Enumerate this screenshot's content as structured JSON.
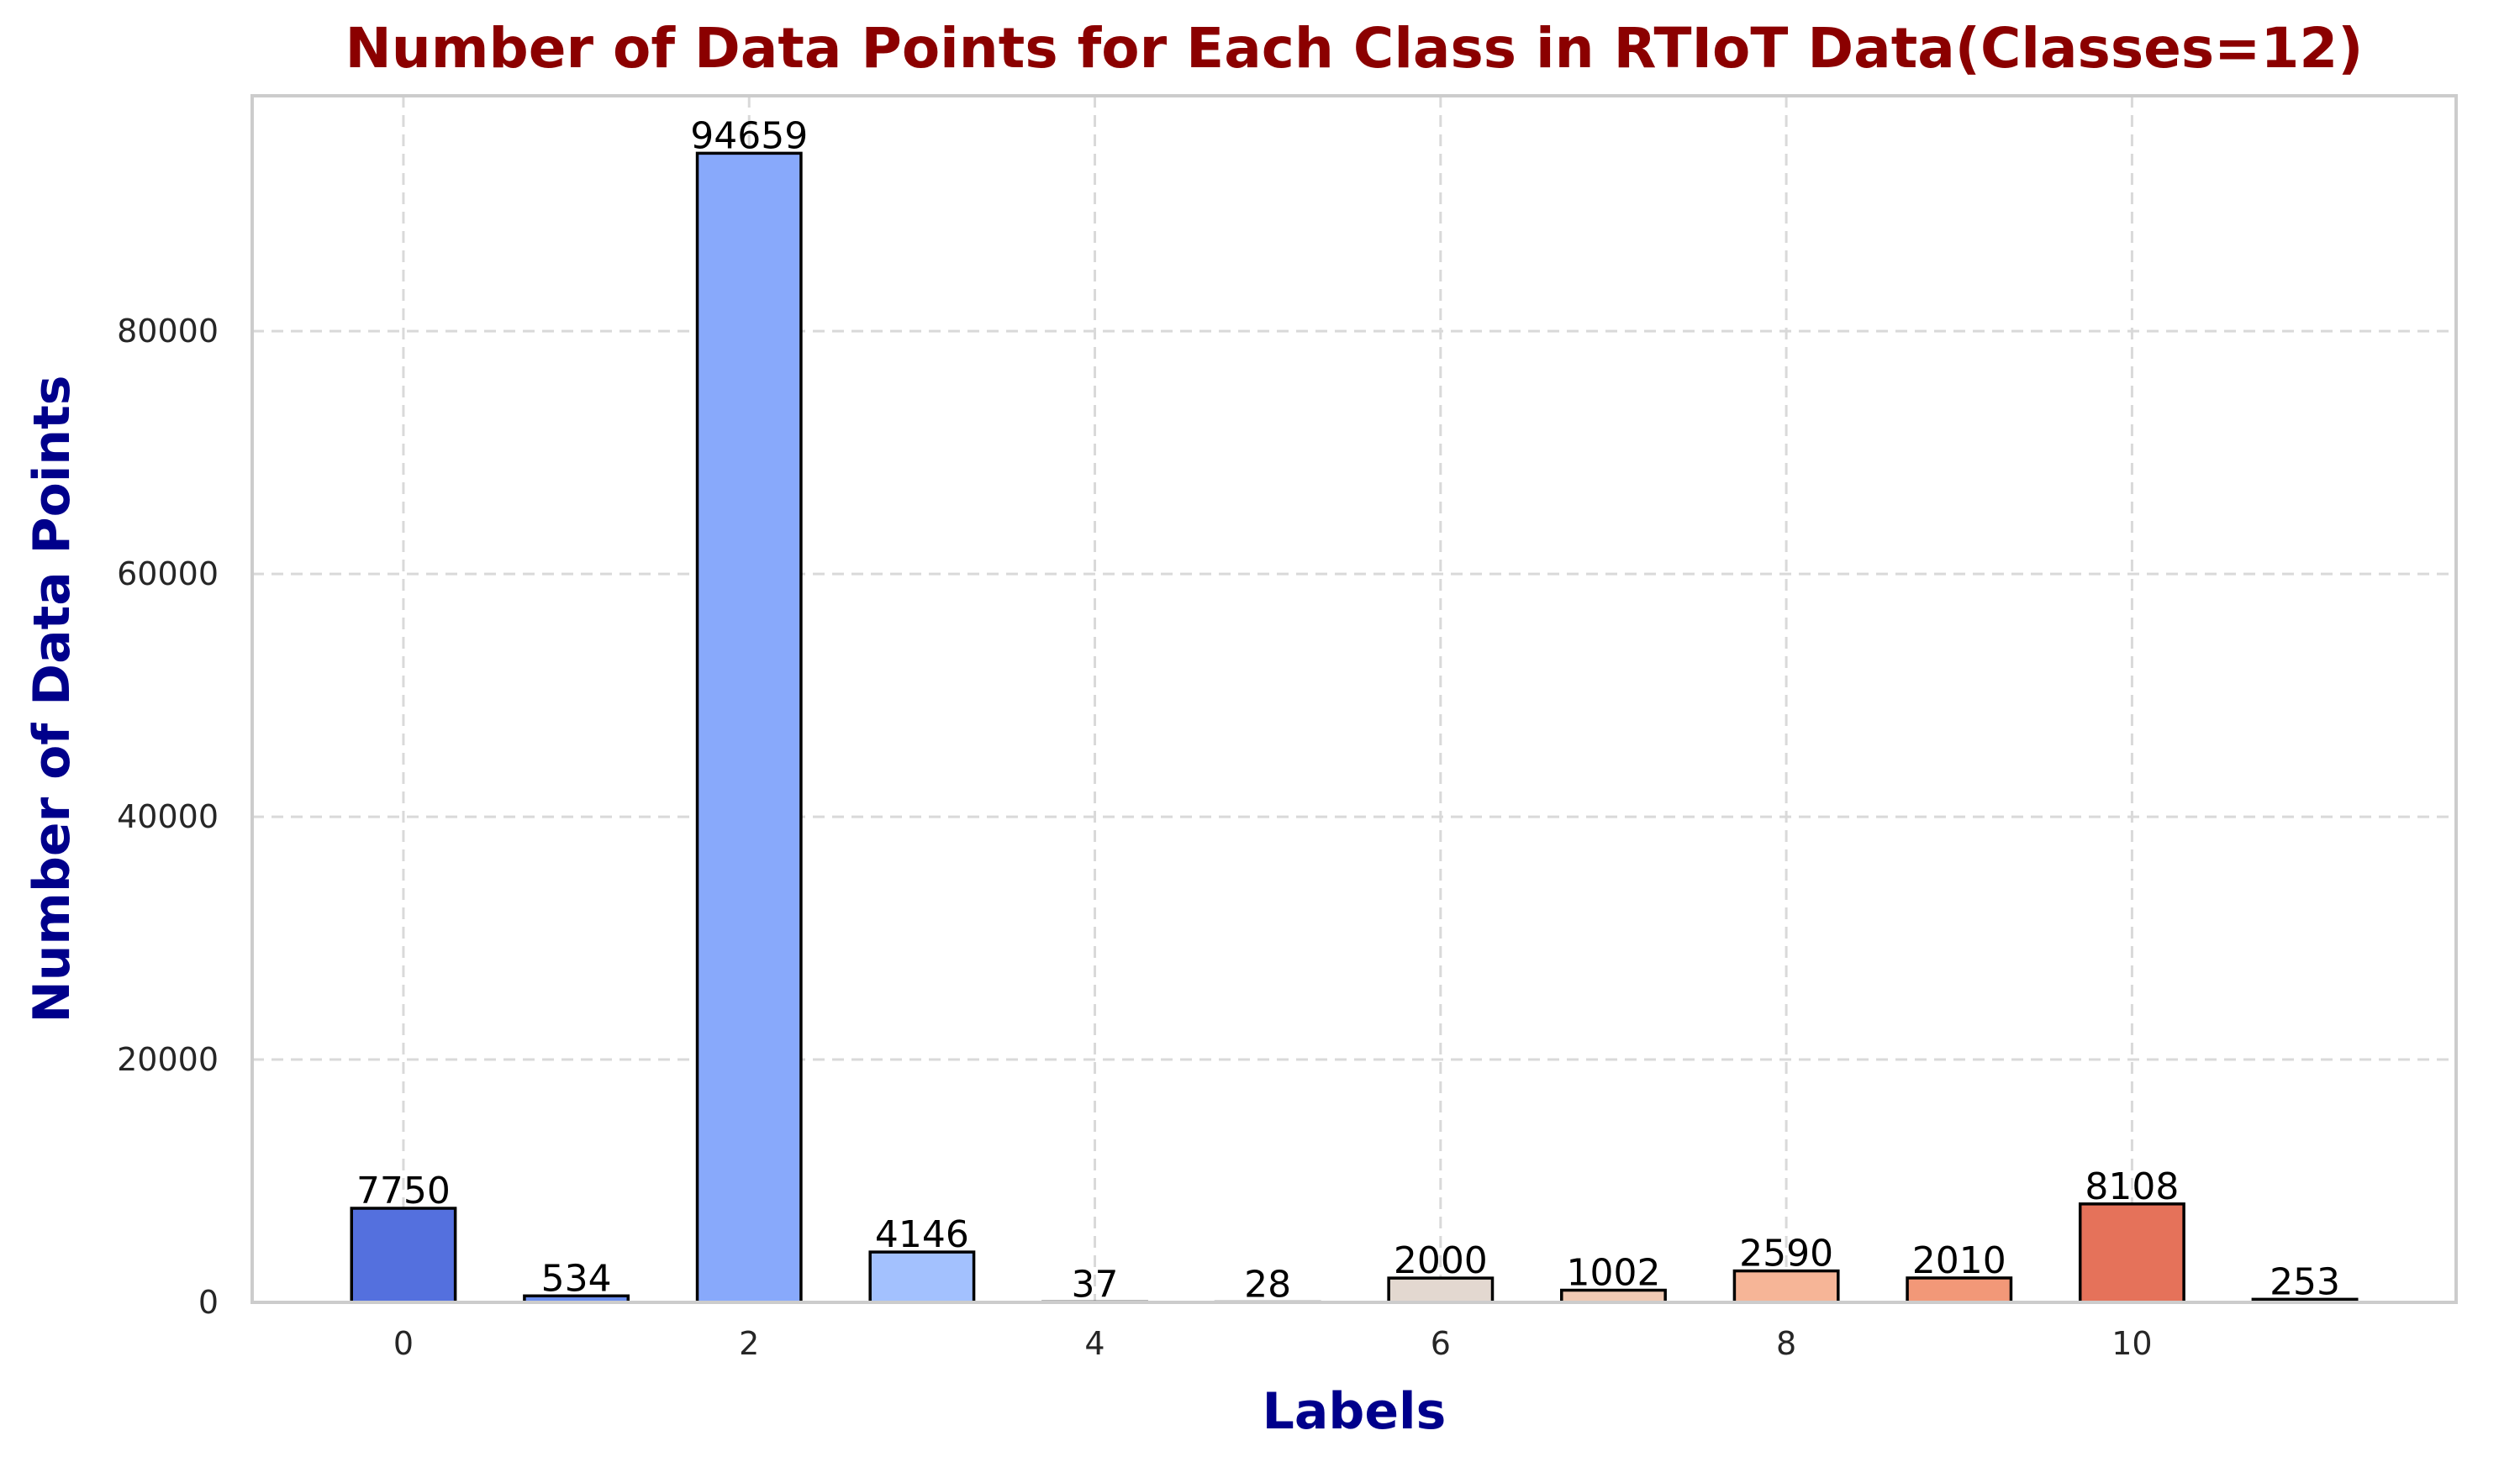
{
  "chart_data": {
    "type": "bar",
    "title": "Number of Data Points for Each Class in RTIoT Data(Classes=12)",
    "xlabel": "Labels",
    "ylabel": "Number of Data Points",
    "categories": [
      0,
      1,
      2,
      3,
      4,
      5,
      6,
      7,
      8,
      9,
      10,
      11
    ],
    "values": [
      7750,
      534,
      94659,
      4146,
      37,
      28,
      2000,
      1002,
      2590,
      2010,
      8108,
      253
    ],
    "data_labels": [
      "7750",
      "534",
      "94659",
      "4146",
      "37",
      "28",
      "2000",
      "1002",
      "2590",
      "2010",
      "8108",
      "253"
    ],
    "colors": [
      "#5470de",
      "#6c8ff0",
      "#88a9fb",
      "#a3c1fe",
      "#bcd1f5",
      "#d1dae9",
      "#e3d8d0",
      "#f1cab4",
      "#f6b597",
      "#f29878",
      "#e5725a",
      "#d0483e"
    ],
    "xticks": [
      0,
      2,
      4,
      6,
      8,
      10
    ],
    "xtick_labels": [
      "0",
      "2",
      "4",
      "6",
      "8",
      "10"
    ],
    "yticks": [
      0,
      20000,
      40000,
      60000,
      80000
    ],
    "ytick_labels": [
      "0",
      "20000",
      "40000",
      "60000",
      "80000"
    ],
    "xlim": [
      -0.875,
      11.875
    ],
    "ylim": [
      0,
      99392
    ],
    "grid": true,
    "legend": "none",
    "title_color": "#8b0000",
    "axis_label_color": "#00008b",
    "edge_color": "#000000"
  }
}
